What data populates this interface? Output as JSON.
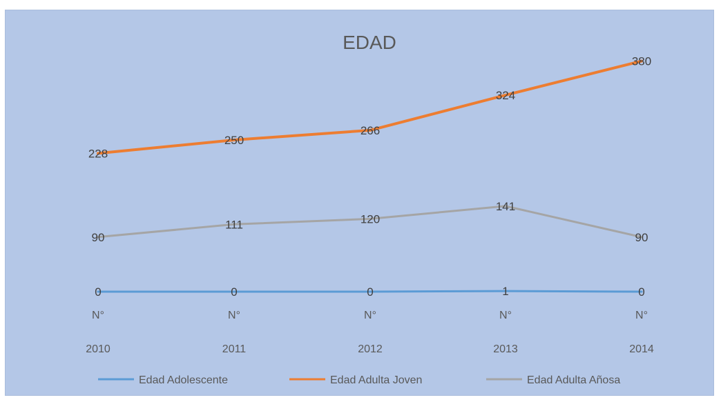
{
  "chart_data": {
    "type": "line",
    "title": "EDAD",
    "categories": [
      [
        "N°",
        "2010"
      ],
      [
        "N°",
        "2011"
      ],
      [
        "N°",
        "2012"
      ],
      [
        "N°",
        "2013"
      ],
      [
        "N°",
        "2014"
      ]
    ],
    "series": [
      {
        "name": "Edad Adolescente",
        "color": "#5b9bd5",
        "values": [
          0,
          0,
          0,
          1,
          0
        ]
      },
      {
        "name": "Edad Adulta Joven",
        "color": "#ed7d31",
        "values": [
          228,
          250,
          266,
          324,
          380
        ]
      },
      {
        "name": "Edad Adulta Añosa",
        "color": "#a5a5a5",
        "values": [
          90,
          111,
          120,
          141,
          90
        ]
      }
    ],
    "ylim": [
      0,
      400
    ],
    "data_labels": true,
    "grid": false,
    "legend": "bottom"
  }
}
